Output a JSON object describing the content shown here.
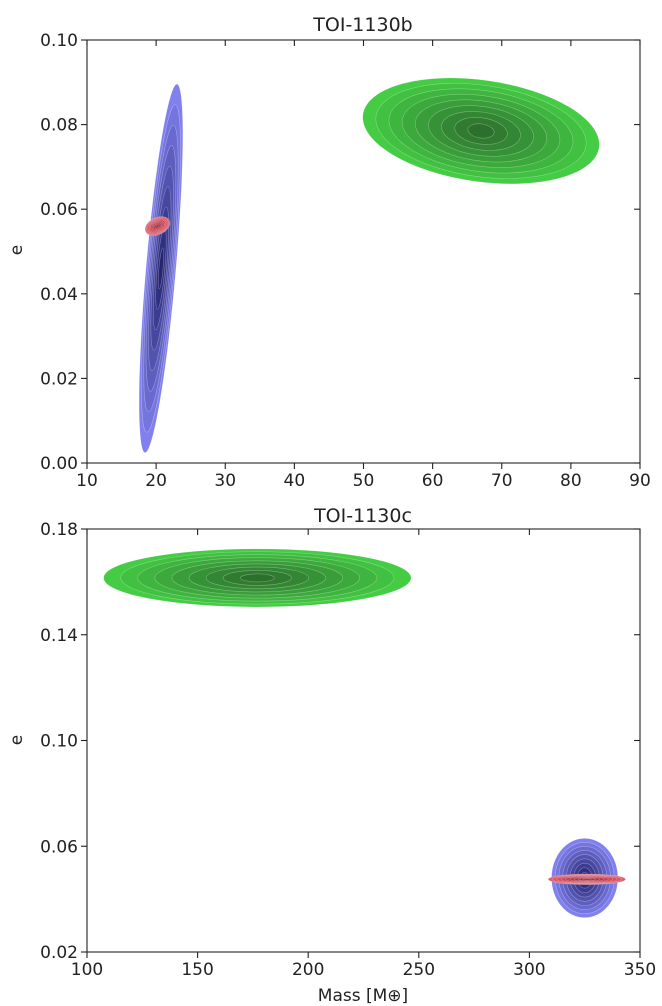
{
  "chart_data": [
    {
      "type": "contour",
      "title": "TOI-1130b",
      "xlabel": "",
      "ylabel": "e",
      "xlim": [
        10,
        90
      ],
      "ylim": [
        0.0,
        0.1
      ],
      "xticks": [
        "10",
        "20",
        "30",
        "40",
        "50",
        "60",
        "70",
        "80",
        "90"
      ],
      "yticks": [
        "0.00",
        "0.02",
        "0.04",
        "0.06",
        "0.08",
        "0.10"
      ],
      "series": [
        {
          "color": "#8080ee",
          "dark": "#20206a",
          "center": [
            20.7,
            0.046
          ],
          "extent": [
            [
              16,
              0.002
            ],
            [
              25,
              0.09
            ]
          ],
          "tilt": 78
        },
        {
          "color": "#44cc44",
          "dark": "#2c6a2c",
          "center": [
            67,
            0.0785
          ],
          "extent": [
            [
              52,
              0.068
            ],
            [
              86.5,
              0.092
            ]
          ],
          "tilt": -8
        },
        {
          "color": "#e06070",
          "dark": "#a02030",
          "center": [
            20.2,
            0.056
          ],
          "extent": [
            [
              18.2,
              0.054
            ],
            [
              22,
              0.058
            ]
          ],
          "tilt": 25
        }
      ]
    },
    {
      "type": "contour",
      "title": "TOI-1130c",
      "xlabel": "Mass [M⊕]",
      "ylabel": "e",
      "xlim": [
        100,
        350
      ],
      "ylim": [
        0.02,
        0.18
      ],
      "xticks": [
        "100",
        "150",
        "200",
        "250",
        "300",
        "350"
      ],
      "yticks": [
        "0.02",
        "0.06",
        "0.10",
        "0.14",
        "0.18"
      ],
      "series": [
        {
          "color": "#44cc44",
          "dark": "#2c6a2c",
          "center": [
            177,
            0.1615
          ],
          "extent": [
            [
              123,
              0.152
            ],
            [
              262,
              0.174
            ]
          ],
          "tilt": 0
        },
        {
          "color": "#8080ee",
          "dark": "#20206a",
          "center": [
            325,
            0.048
          ],
          "extent": [
            [
              310,
              0.037
            ],
            [
              340,
              0.067
            ]
          ],
          "tilt": 90
        },
        {
          "color": "#e06070",
          "dark": "#a02030",
          "center": [
            326,
            0.0475
          ],
          "extent": [
            [
              307,
              0.0455
            ],
            [
              342,
              0.0495
            ]
          ],
          "tilt": 0
        }
      ]
    }
  ]
}
